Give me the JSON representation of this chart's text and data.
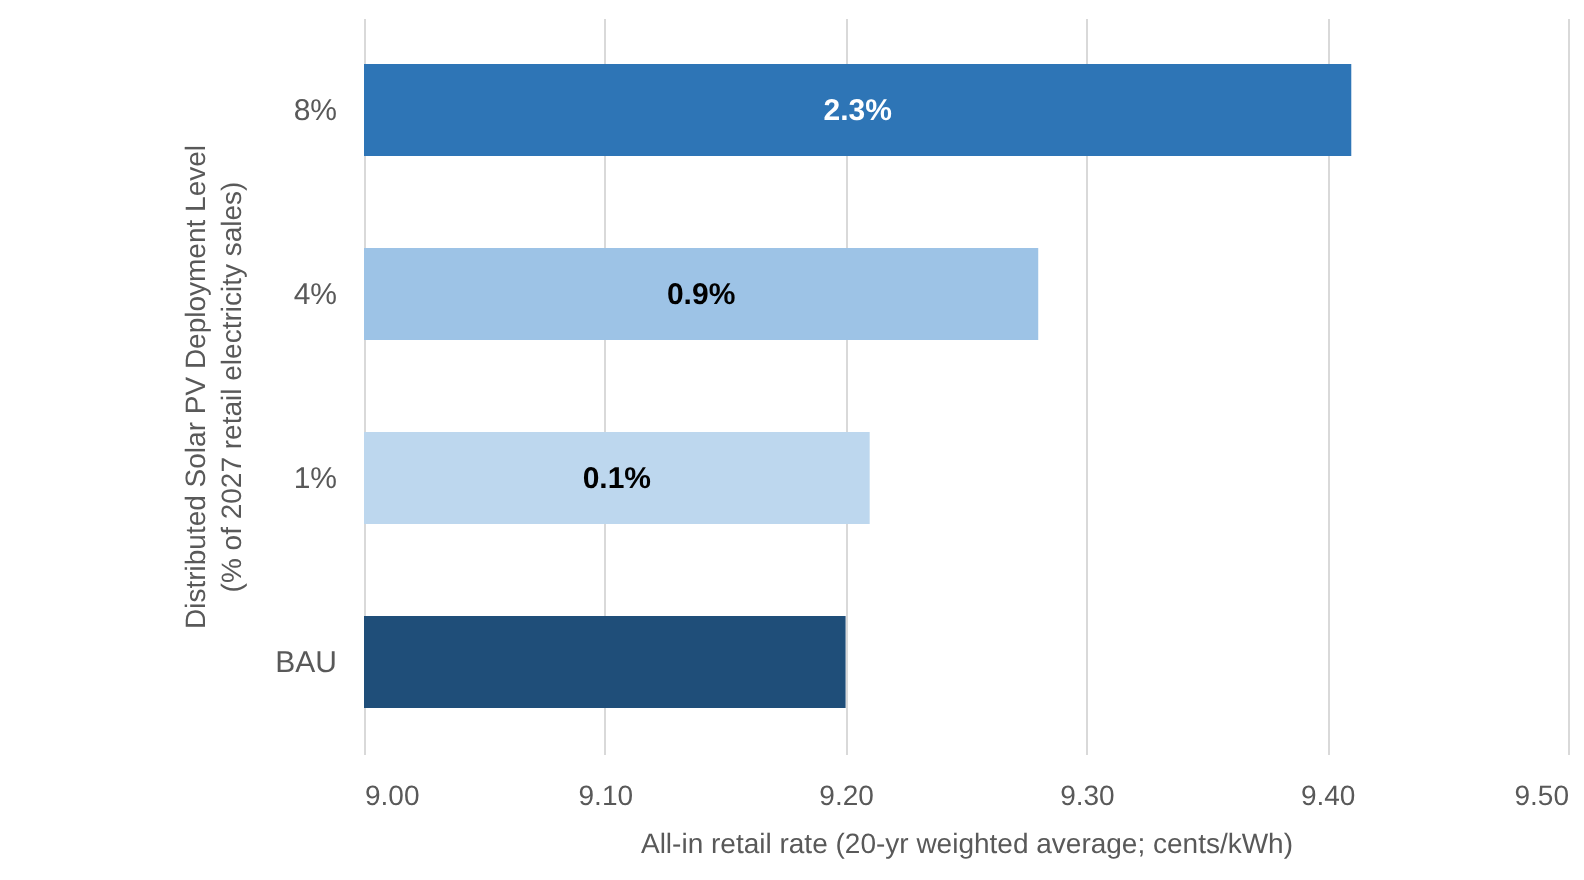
{
  "chart_data": {
    "type": "bar",
    "orientation": "horizontal",
    "categories": [
      "8%",
      "4%",
      "1%",
      "BAU"
    ],
    "values": [
      9.41,
      9.28,
      9.21,
      9.2
    ],
    "colors": [
      "#2e75b6",
      "#9dc3e6",
      "#bdd7ee",
      "#1f4e79"
    ],
    "annotations": [
      "2.3%",
      "0.9%",
      "0.1%"
    ],
    "xlim": [
      9.0,
      9.5
    ],
    "xticks": [
      {
        "value": 9.0,
        "label": "9.00"
      },
      {
        "value": 9.1,
        "label": "9.10"
      },
      {
        "value": 9.2,
        "label": "9.20"
      },
      {
        "value": 9.3,
        "label": "9.30"
      },
      {
        "value": 9.4,
        "label": "9.40"
      },
      {
        "value": 9.5,
        "label": "9.50"
      }
    ],
    "xlabel": "All-in retail rate (20-yr weighted average; cents/kWh)",
    "ylabel": "Distributed Solar PV Deployment Level (% of 2027 retail electricity sales)",
    "grid": "x"
  }
}
